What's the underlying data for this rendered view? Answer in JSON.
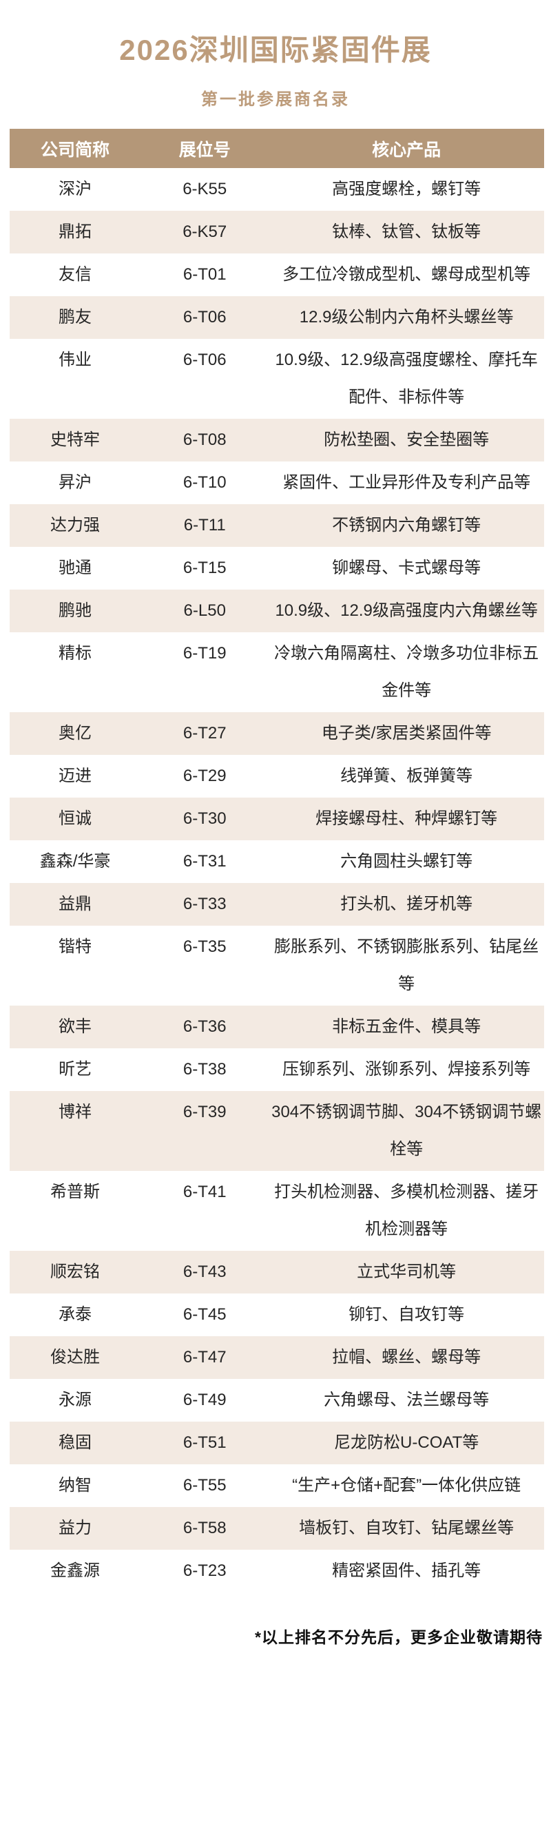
{
  "page": {
    "title": "2026深圳国际紧固件展",
    "subtitle": "第一批参展商名录",
    "footnote": "*以上排名不分先后，更多企业敬请期待"
  },
  "colors": {
    "accent_tan": "#bd9c7b",
    "table_header_bg": "#b49778",
    "row_alt_bg": "#f3eae2",
    "body_text": "#262626",
    "header_text": "#ffffff"
  },
  "table": {
    "columns": [
      "公司简称",
      "展位号",
      "核心产品"
    ],
    "rows": [
      {
        "company": "深沪",
        "booth": "6-K55",
        "products": "高强度螺栓，螺钉等"
      },
      {
        "company": "鼎拓",
        "booth": "6-K57",
        "products": "钛棒、钛管、钛板等"
      },
      {
        "company": "友信",
        "booth": "6-T01",
        "products": "多工位冷镦成型机、螺母成型机等"
      },
      {
        "company": "鹏友",
        "booth": "6-T06",
        "products": "12.9级公制内六角杯头螺丝等"
      },
      {
        "company": "伟业",
        "booth": "6-T06",
        "products": "10.9级、12.9级高强度螺栓、摩托车配件、非标件等"
      },
      {
        "company": "史特牢",
        "booth": "6-T08",
        "products": "防松垫圈、安全垫圈等"
      },
      {
        "company": "昇沪",
        "booth": "6-T10",
        "products": "紧固件、工业异形件及专利产品等"
      },
      {
        "company": "达力强",
        "booth": "6-T11",
        "products": "不锈钢内六角螺钉等"
      },
      {
        "company": "驰通",
        "booth": "6-T15",
        "products": "铆螺母、卡式螺母等"
      },
      {
        "company": "鹏驰",
        "booth": "6-L50",
        "products": "10.9级、12.9级高强度内六角螺丝等"
      },
      {
        "company": "精标",
        "booth": "6-T19",
        "products": "冷墩六角隔离柱、冷墩多功位非标五金件等"
      },
      {
        "company": "奥亿",
        "booth": "6-T27",
        "products": "电子类/家居类紧固件等"
      },
      {
        "company": "迈进",
        "booth": "6-T29",
        "products": "线弹簧、板弹簧等"
      },
      {
        "company": "恒诚",
        "booth": "6-T30",
        "products": "焊接螺母柱、种焊螺钉等"
      },
      {
        "company": "鑫森/华豪",
        "booth": "6-T31",
        "products": "六角圆柱头螺钉等"
      },
      {
        "company": "益鼎",
        "booth": "6-T33",
        "products": "打头机、搓牙机等"
      },
      {
        "company": "锴特",
        "booth": "6-T35",
        "products": "膨胀系列、不锈钢膨胀系列、钻尾丝等"
      },
      {
        "company": "欲丰",
        "booth": "6-T36",
        "products": "非标五金件、模具等"
      },
      {
        "company": "昕艺",
        "booth": "6-T38",
        "products": "压铆系列、涨铆系列、焊接系列等"
      },
      {
        "company": "博祥",
        "booth": "6-T39",
        "products": "304不锈钢调节脚、304不锈钢调节螺栓等"
      },
      {
        "company": "希普斯",
        "booth": "6-T41",
        "products": "打头机检测器、多模机检测器、搓牙机检测器等"
      },
      {
        "company": "顺宏铭",
        "booth": "6-T43",
        "products": "立式华司机等"
      },
      {
        "company": "承泰",
        "booth": "6-T45",
        "products": "铆钉、自攻钉等"
      },
      {
        "company": "俊达胜",
        "booth": "6-T47",
        "products": "拉帽、螺丝、螺母等"
      },
      {
        "company": "永源",
        "booth": "6-T49",
        "products": "六角螺母、法兰螺母等"
      },
      {
        "company": "稳固",
        "booth": "6-T51",
        "products": "尼龙防松U-COAT等"
      },
      {
        "company": "纳智",
        "booth": "6-T55",
        "products": "“生产+仓储+配套”一体化供应链"
      },
      {
        "company": "益力",
        "booth": "6-T58",
        "products": "墙板钉、自攻钉、钻尾螺丝等"
      },
      {
        "company": "金鑫源",
        "booth": "6-T23",
        "products": "精密紧固件、插孔等"
      }
    ]
  }
}
